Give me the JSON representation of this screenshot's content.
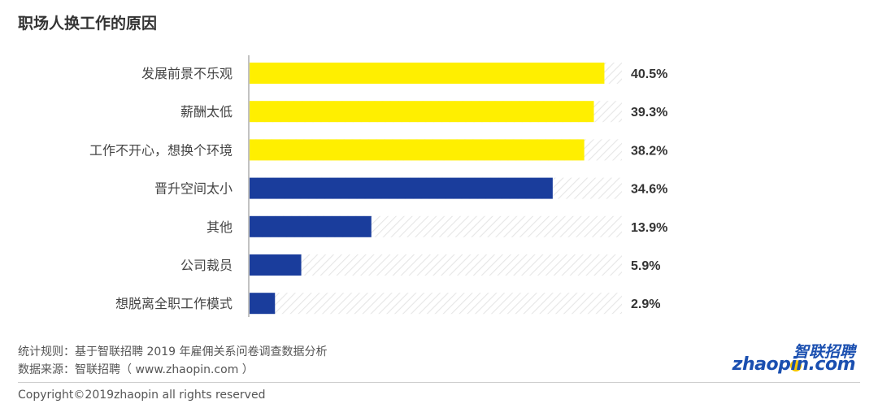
{
  "chart_data": {
    "type": "bar",
    "orientation": "horizontal",
    "title": "职场人换工作的原因",
    "categories": [
      "发展前景不乐观",
      "薪酬太低",
      "工作不开心，想换个环境",
      "晋升空间太小",
      "其他",
      "公司裁员",
      "想脱离全职工作模式"
    ],
    "values": [
      40.5,
      39.3,
      38.2,
      34.6,
      13.9,
      5.9,
      2.9
    ],
    "value_labels": [
      "40.5%",
      "39.3%",
      "38.2%",
      "34.6%",
      "13.9%",
      "5.9%",
      "2.9%"
    ],
    "bar_colors": [
      "#ffef00",
      "#ffef00",
      "#ffef00",
      "#1a3d9c",
      "#1a3d9c",
      "#1a3d9c",
      "#1a3d9c"
    ],
    "xlim": [
      0,
      42.5
    ],
    "grid": false,
    "background_pattern": "diagonal-hatch"
  },
  "footer": {
    "rule": "统计规则：基于智联招聘 2019 年雇佣关系问卷调查数据分析",
    "source": "数据来源：智联招聘（ www.zhaopin.com ）",
    "copyright": "Copyright©2019zhaopin all rights reserved"
  },
  "logo": {
    "cn": "智联招聘",
    "en": "zhaopin.com"
  }
}
